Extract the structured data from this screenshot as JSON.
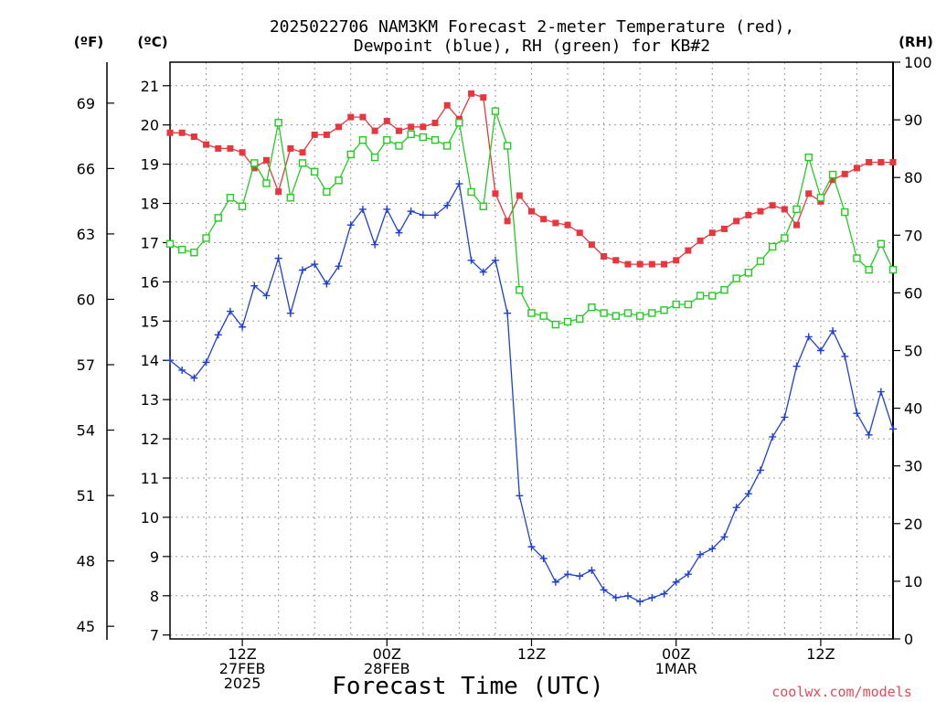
{
  "chart_data": {
    "type": "line",
    "title_line1": "2025022706 NAM3KM Forecast 2-meter Temperature (red),",
    "title_line2": "Dewpoint (blue), RH (green) for KB#2",
    "xlabel": "Forecast Time (UTC)",
    "credit": "coolwx.com/models",
    "unit_f": "(ºF)",
    "unit_c": "(ºC)",
    "unit_rh": "(RH)",
    "left_c_ticks": [
      "7",
      "8",
      "9",
      "10",
      "11",
      "12",
      "13",
      "14",
      "15",
      "16",
      "17",
      "18",
      "19",
      "20",
      "21"
    ],
    "left_f_ticks": [
      "45",
      "48",
      "51",
      "54",
      "57",
      "60",
      "63",
      "66",
      "69"
    ],
    "right_rh_ticks": [
      "0",
      "10",
      "20",
      "30",
      "40",
      "50",
      "60",
      "70",
      "80",
      "90",
      "100"
    ],
    "x_ticks": [
      {
        "hour": 6,
        "lines": [
          "12Z",
          "27FEB",
          "2025"
        ]
      },
      {
        "hour": 18,
        "lines": [
          "00Z",
          "28FEB"
        ]
      },
      {
        "hour": 30,
        "lines": [
          "12Z"
        ]
      },
      {
        "hour": 42,
        "lines": [
          "00Z",
          "1MAR"
        ]
      },
      {
        "hour": 54,
        "lines": [
          "12Z"
        ]
      }
    ],
    "xlim": [
      0,
      60
    ],
    "ylim_c": [
      6.9,
      21.6
    ],
    "ylim_rh": [
      0,
      100
    ],
    "grid": true,
    "colors": {
      "temperature": "#e8363f",
      "dewpoint": "#1f3fd6",
      "rh": "#22cc22"
    },
    "x_hours": [
      0,
      1,
      2,
      3,
      4,
      5,
      6,
      7,
      8,
      9,
      10,
      11,
      12,
      13,
      14,
      15,
      16,
      17,
      18,
      19,
      20,
      21,
      22,
      23,
      24,
      25,
      26,
      27,
      28,
      29,
      30,
      31,
      32,
      33,
      34,
      35,
      36,
      37,
      38,
      39,
      40,
      41,
      42,
      43,
      44,
      45,
      46,
      47,
      48,
      49,
      50,
      51,
      52,
      53,
      54,
      55,
      56,
      57,
      58,
      59,
      60
    ],
    "series": [
      {
        "key": "temperature",
        "unit": "C",
        "marker": "filled-square",
        "values": [
          19.8,
          19.8,
          19.7,
          19.5,
          19.4,
          19.4,
          19.3,
          18.9,
          19.1,
          18.3,
          19.4,
          19.3,
          19.75,
          19.75,
          19.95,
          20.2,
          20.2,
          19.85,
          20.1,
          19.85,
          19.95,
          19.95,
          20.05,
          20.5,
          20.15,
          20.8,
          20.7,
          18.25,
          17.55,
          18.2,
          17.8,
          17.6,
          17.5,
          17.45,
          17.25,
          16.95,
          16.65,
          16.55,
          16.45,
          16.45,
          16.45,
          16.45,
          16.55,
          16.8,
          17.05,
          17.25,
          17.35,
          17.55,
          17.7,
          17.8,
          17.95,
          17.85,
          17.45,
          18.25,
          18.05,
          18.6,
          18.75,
          18.9,
          19.05,
          19.05,
          19.05
        ]
      },
      {
        "key": "dewpoint",
        "unit": "C",
        "marker": "plus",
        "values": [
          14.0,
          13.75,
          13.55,
          13.95,
          14.65,
          15.25,
          14.85,
          15.9,
          15.65,
          16.6,
          15.2,
          16.3,
          16.45,
          15.95,
          16.4,
          17.45,
          17.85,
          16.95,
          17.85,
          17.25,
          17.8,
          17.7,
          17.7,
          17.95,
          18.5,
          16.55,
          16.25,
          16.55,
          15.2,
          10.55,
          9.25,
          8.95,
          8.35,
          8.55,
          8.5,
          8.65,
          8.15,
          7.95,
          8.0,
          7.85,
          7.95,
          8.05,
          8.35,
          8.55,
          9.05,
          9.2,
          9.5,
          10.25,
          10.6,
          11.2,
          12.05,
          12.55,
          13.85,
          14.6,
          14.25,
          14.75,
          14.1,
          12.65,
          12.1,
          13.2,
          12.25
        ]
      },
      {
        "key": "rh",
        "unit": "RH",
        "marker": "open-square",
        "values": [
          68.5,
          67.5,
          67.0,
          69.5,
          73.0,
          76.5,
          75.0,
          82.5,
          79.0,
          89.5,
          76.5,
          82.5,
          81.0,
          77.5,
          79.5,
          84.0,
          86.5,
          83.5,
          86.5,
          85.5,
          87.5,
          87.0,
          86.5,
          85.5,
          89.5,
          77.5,
          75.0,
          91.5,
          85.5,
          60.5,
          56.5,
          56.0,
          54.5,
          55.0,
          55.5,
          57.5,
          56.5,
          56.0,
          56.5,
          56.0,
          56.5,
          57.0,
          58.0,
          58.0,
          59.5,
          59.5,
          60.5,
          62.5,
          63.5,
          65.5,
          68.0,
          69.5,
          74.5,
          83.5,
          76.5,
          80.5,
          74.0,
          66.0,
          64.0,
          68.5,
          64.0
        ]
      }
    ]
  }
}
